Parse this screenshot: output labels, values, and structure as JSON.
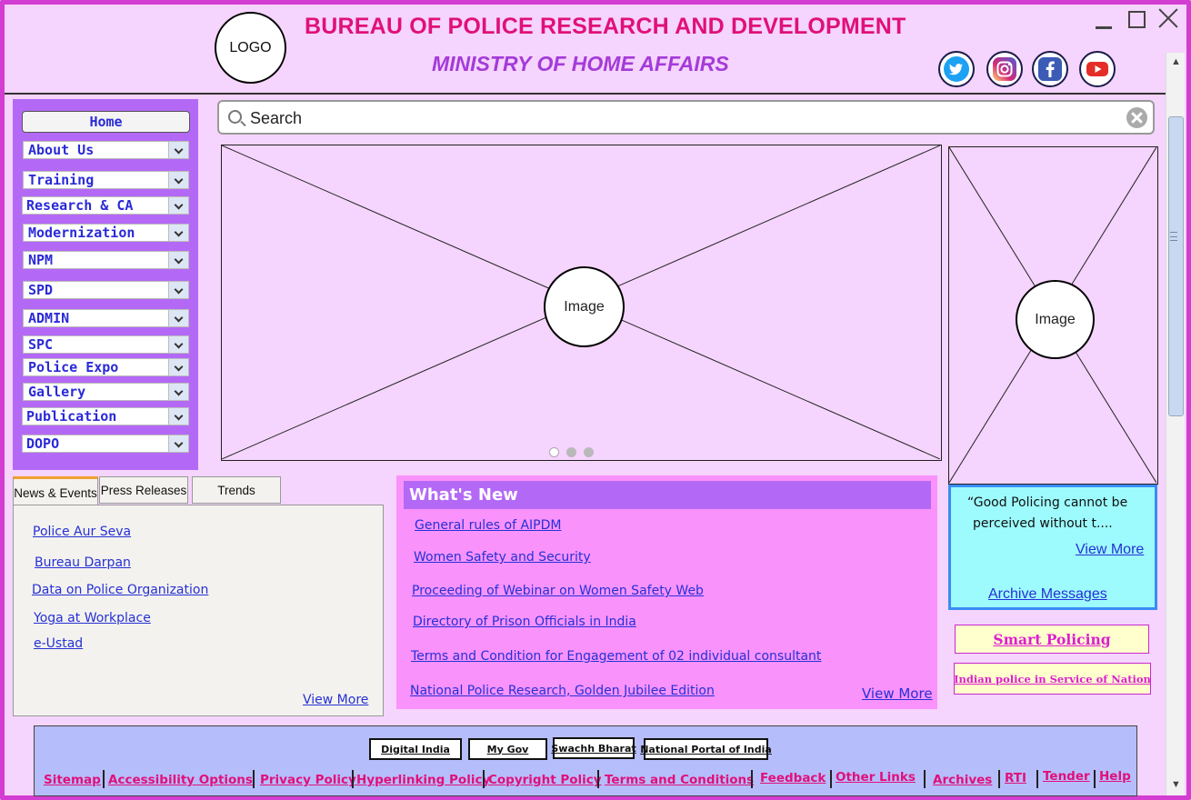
{
  "header": {
    "logo_text": "LOGO",
    "title": "BUREAU OF POLICE RESEARCH AND DEVELOPMENT",
    "subtitle": "MINISTRY OF HOME AFFAIRS"
  },
  "social": [
    "twitter-icon",
    "instagram-icon",
    "facebook-icon",
    "youtube-icon"
  ],
  "nav": {
    "home": "Home",
    "items": [
      "About Us",
      "Training",
      "Research & CA",
      "Modernization",
      "NPM",
      "SPD",
      "ADMIN",
      "SPC",
      "Police Expo",
      "Gallery",
      "Publication",
      "DOPO"
    ]
  },
  "search": {
    "placeholder": "Search"
  },
  "carousel": {
    "image_label": "Image"
  },
  "side_image": {
    "image_label": "Image"
  },
  "tabs": {
    "labels": [
      "News & Events",
      "Press Releases",
      "Trends"
    ],
    "links": [
      "Police Aur Seva",
      "Bureau Darpan",
      "Data on Police Organization",
      "Yoga at Workplace",
      "e-Ustad"
    ],
    "view_more": "View More"
  },
  "whats_new": {
    "title": "What's New",
    "links": [
      "General rules of AIPDM",
      "Women Safety and Security",
      "Proceeding of Webinar on Women Safety Web",
      "Directory of Prison Officials in India",
      "Terms and Condition for Engagement of 02 individual consultant",
      "National Police Research, Golden Jubilee Edition"
    ],
    "view_more": "View More"
  },
  "quote": {
    "text_line1": "“Good Policing cannot be",
    "text_line2": "perceived without t....",
    "view_more": "View More",
    "archive": "Archive Messages"
  },
  "smart_policing": "Smart Policing",
  "indian_police": "Indian police in Service of Nation",
  "footer": {
    "buttons": [
      "Digital India",
      "My Gov",
      "Swachh Bharat",
      "National Portal of India"
    ],
    "links": [
      "Sitemap",
      "Accessibility Options",
      "Privacy Policy",
      "Hyperlinking Policy",
      "Copyright Policy",
      "Terms and Conditions",
      "Feedback",
      "Other Links",
      "Archives",
      "RTI",
      "Tender",
      "Help"
    ]
  }
}
